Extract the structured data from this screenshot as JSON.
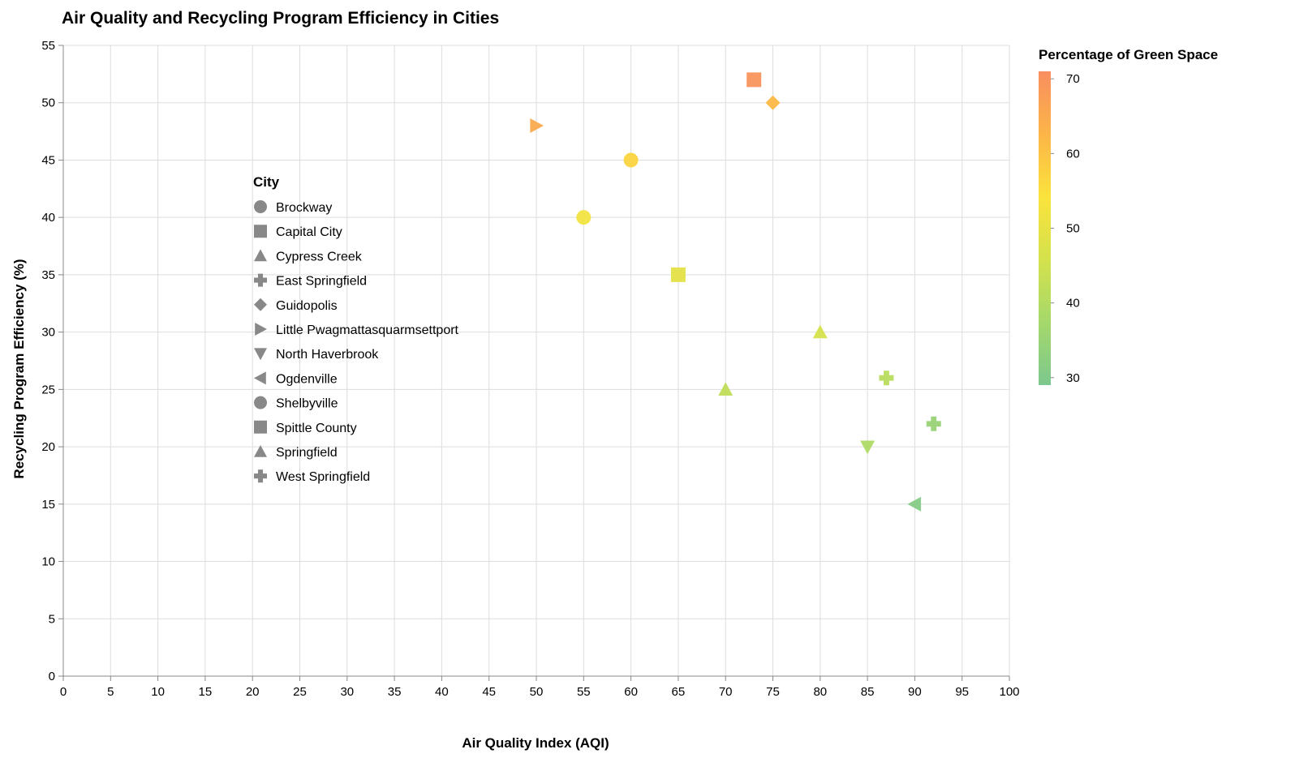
{
  "chart_data": {
    "type": "scatter",
    "title": "Air Quality and Recycling Program Efficiency in Cities",
    "xlabel": "Air Quality Index (AQI)",
    "ylabel": "Recycling Program Efficiency (%)",
    "xlim": [
      0,
      100
    ],
    "ylim": [
      0,
      55
    ],
    "x_ticks": [
      0,
      5,
      10,
      15,
      20,
      25,
      30,
      35,
      40,
      45,
      50,
      55,
      60,
      65,
      70,
      75,
      80,
      85,
      90,
      95,
      100
    ],
    "y_ticks": [
      0,
      5,
      10,
      15,
      20,
      25,
      30,
      35,
      40,
      45,
      50,
      55
    ],
    "grid": true,
    "shape_legend": {
      "title": "City",
      "items": [
        {
          "label": "Brockway",
          "shape": "circle"
        },
        {
          "label": "Capital City",
          "shape": "square"
        },
        {
          "label": "Cypress Creek",
          "shape": "triangle-up"
        },
        {
          "label": "East Springfield",
          "shape": "cross"
        },
        {
          "label": "Guidopolis",
          "shape": "diamond"
        },
        {
          "label": "Little Pwagmattasquarmsettport",
          "shape": "triangle-right"
        },
        {
          "label": "North Haverbrook",
          "shape": "triangle-down"
        },
        {
          "label": "Ogdenville",
          "shape": "triangle-left"
        },
        {
          "label": "Shelbyville",
          "shape": "circle"
        },
        {
          "label": "Spittle County",
          "shape": "square"
        },
        {
          "label": "Springfield",
          "shape": "triangle-up"
        },
        {
          "label": "West Springfield",
          "shape": "cross"
        }
      ]
    },
    "color_legend": {
      "title": "Percentage of Green Space",
      "min": 29,
      "max": 71,
      "ticks": [
        30,
        40,
        50,
        60,
        70
      ],
      "colors": [
        "#7cc88e",
        "#a5d86b",
        "#d4e24c",
        "#fbe33c",
        "#fcb548",
        "#f98e5f"
      ]
    },
    "points": [
      {
        "city": "Capital City",
        "aqi": 73,
        "recycling": 52,
        "green": 70
      },
      {
        "city": "Guidopolis",
        "aqi": 75,
        "recycling": 50,
        "green": 62
      },
      {
        "city": "Little Pwagmattasquarmsettport",
        "aqi": 50,
        "recycling": 48,
        "green": 65
      },
      {
        "city": "Shelbyville",
        "aqi": 60,
        "recycling": 45,
        "green": 57
      },
      {
        "city": "Brockway",
        "aqi": 55,
        "recycling": 40,
        "green": 52
      },
      {
        "city": "Spittle County",
        "aqi": 65,
        "recycling": 35,
        "green": 49
      },
      {
        "city": "Springfield",
        "aqi": 80,
        "recycling": 30,
        "green": 46
      },
      {
        "city": "East Springfield",
        "aqi": 87,
        "recycling": 26,
        "green": 41
      },
      {
        "city": "Cypress Creek",
        "aqi": 70,
        "recycling": 25,
        "green": 42
      },
      {
        "city": "West Springfield",
        "aqi": 92,
        "recycling": 22,
        "green": 35
      },
      {
        "city": "North Haverbrook",
        "aqi": 85,
        "recycling": 20,
        "green": 39
      },
      {
        "city": "Ogdenville",
        "aqi": 90,
        "recycling": 15,
        "green": 31
      }
    ]
  }
}
